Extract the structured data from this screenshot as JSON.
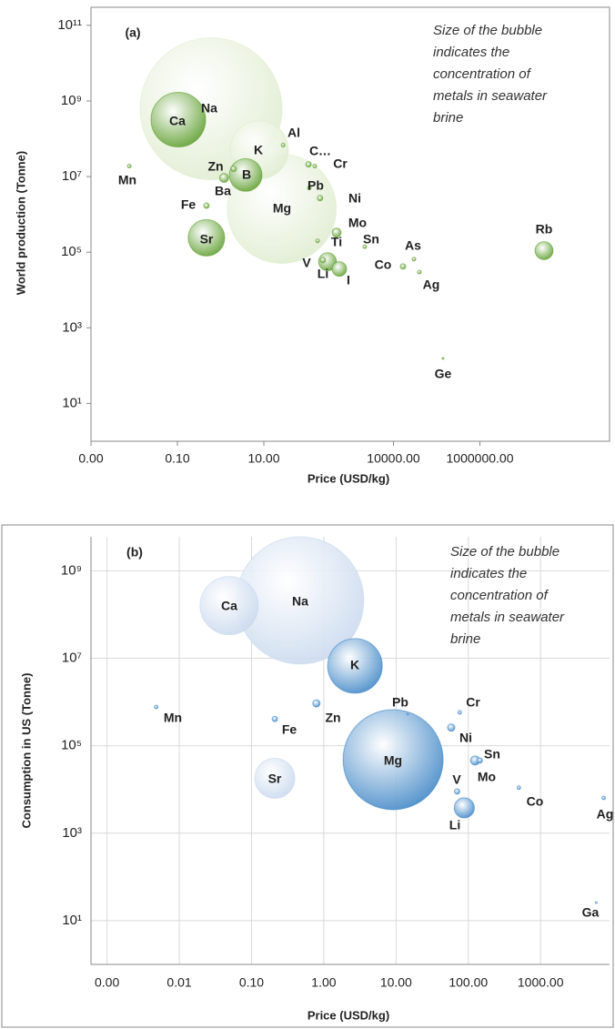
{
  "chart_data": [
    {
      "type": "bubble",
      "panel_label": "(a)",
      "annotation": [
        "Size of the bubble",
        "indicates the",
        "concentration of",
        "metals in seawater",
        "brine"
      ],
      "x_label": "Price (USD/kg)",
      "y_label": "World production (Tonne)",
      "x_log": true,
      "y_log": true,
      "grid": false,
      "xlim": [
        0.001,
        1000000000
      ],
      "ylim": [
        1,
        300000000000
      ],
      "xticks": [
        {
          "value": 0.001,
          "label": "0.00"
        },
        {
          "value": 0.1,
          "label": "0.10"
        },
        {
          "value": 10,
          "label": "10.00"
        },
        {
          "value": 10000,
          "label": "10000.00"
        },
        {
          "value": 1000000,
          "label": "1000000.00"
        }
      ],
      "yticks": [
        {
          "value": 10,
          "label": "10¹"
        },
        {
          "value": 1000,
          "label": "10³"
        },
        {
          "value": 100000,
          "label": "10⁵"
        },
        {
          "value": 10000000,
          "label": "10⁷"
        },
        {
          "value": 1000000000,
          "label": "10⁹"
        },
        {
          "value": 100000000000,
          "label": "10¹¹"
        }
      ],
      "labels": [
        "Na",
        "Mg",
        "K",
        "Ca",
        "Sr",
        "B",
        "Li",
        "Rb",
        "I",
        "Ba",
        "Mo",
        "Zn",
        "Fe",
        "C…",
        "Ni",
        "V",
        "Co",
        "Mn",
        "Al",
        "Cr",
        "Pb",
        "Ti",
        "Sn",
        "As",
        "Ag",
        "Ge"
      ],
      "x": [
        0.6,
        26,
        7.9,
        0.105,
        0.47,
        3.8,
        298,
        30500000,
        558,
        1.2,
        483,
        2.0,
        0.47,
        108,
        200,
        233,
        16600,
        0.0077,
        28,
        151,
        113,
        175,
        2170,
        29800,
        39800,
        140000
      ],
      "y": [
        620000000,
        1400000,
        51000000,
        320000000,
        240000,
        11000000,
        56000,
        110000,
        36000,
        9200000,
        330000,
        16000000,
        1700000,
        21000000,
        2700000,
        62000,
        42000,
        19000000,
        68000000,
        19000000,
        5000000,
        200000,
        140000,
        66000,
        30000,
        156
      ],
      "sizes": [
        10000,
        5900,
        1680,
        1480,
        660,
        530,
        160,
        160,
        105,
        40,
        40,
        15,
        15,
        15,
        15,
        15,
        15,
        7,
        7,
        7,
        7,
        7,
        7,
        7,
        7,
        2
      ],
      "colors": [
        "#dfeccf",
        "#dfeccf",
        "#dfeccf",
        "#5e9e2e",
        "#5e9e2e",
        "#5e9e2e",
        "#5e9e2e",
        "#5e9e2e",
        "#5e9e2e",
        "#5e9e2e",
        "#5e9e2e",
        "#5e9e2e",
        "#5e9e2e",
        "#5e9e2e",
        "#5e9e2e",
        "#5e9e2e",
        "#5e9e2e",
        "#5e9e2e",
        "#5e9e2e",
        "#5e9e2e",
        "#5e9e2e",
        "#5e9e2e",
        "#5e9e2e",
        "#5e9e2e",
        "#5e9e2e",
        "#5e9e2e"
      ]
    },
    {
      "type": "bubble",
      "panel_label": "(b)",
      "annotation": [
        "Size of the bubble",
        "indicates the",
        "concentration of",
        "metals in seawater",
        "brine"
      ],
      "x_label": "Price (USD/kg)",
      "y_label": "Consumption in US (Tonne)",
      "x_log": true,
      "y_log": true,
      "grid": true,
      "xlim": [
        0.0006,
        9000
      ],
      "ylim": [
        1,
        6000000000
      ],
      "xticks": [
        {
          "value": 0.001,
          "label": "0.00"
        },
        {
          "value": 0.01,
          "label": "0.01"
        },
        {
          "value": 0.1,
          "label": "0.10"
        },
        {
          "value": 1,
          "label": "1.00"
        },
        {
          "value": 10,
          "label": "10.00"
        },
        {
          "value": 100,
          "label": "100.00"
        },
        {
          "value": 1000,
          "label": "1000.00"
        }
      ],
      "yticks": [
        {
          "value": 10,
          "label": "10¹"
        },
        {
          "value": 1000,
          "label": "10³"
        },
        {
          "value": 100000,
          "label": "10⁵"
        },
        {
          "value": 10000000,
          "label": "10⁷"
        },
        {
          "value": 1000000000,
          "label": "10⁹"
        }
      ],
      "labels": [
        "Na",
        "Mg",
        "Ca",
        "K",
        "Sr",
        "Li",
        "Sn",
        "Zn",
        "Ni",
        "Fe",
        "Mo",
        "V",
        "Mn",
        "Cr",
        "Co",
        "Ag",
        "Pb",
        "Ga"
      ],
      "x": [
        0.47,
        9.1,
        0.049,
        2.7,
        0.21,
        88,
        124,
        0.79,
        58,
        0.21,
        144,
        70,
        0.0048,
        76,
        500,
        7460,
        14.5,
        5900
      ],
      "y": [
        210000000,
        48000,
        160000000,
        6700000,
        18000,
        3800,
        46000,
        930000,
        260000,
        410000,
        46000,
        9000,
        770000,
        580000,
        11000,
        6400,
        530000,
        26
      ],
      "sizes": [
        10000,
        6170,
        2090,
        1840,
        990,
        250,
        51,
        33,
        33,
        18,
        18,
        18,
        8,
        8,
        8,
        8,
        2,
        2
      ],
      "colors": [
        "#c9d9ee",
        "#3f86c6",
        "#c9d9ee",
        "#3f86c6",
        "#c9d9ee",
        "#3f86c6",
        "#3f86c6",
        "#3f86c6",
        "#3f86c6",
        "#3f86c6",
        "#3f86c6",
        "#3f86c6",
        "#3f86c6",
        "#3f86c6",
        "#3f86c6",
        "#3f86c6",
        "#3f86c6",
        "#3f86c6"
      ]
    }
  ]
}
